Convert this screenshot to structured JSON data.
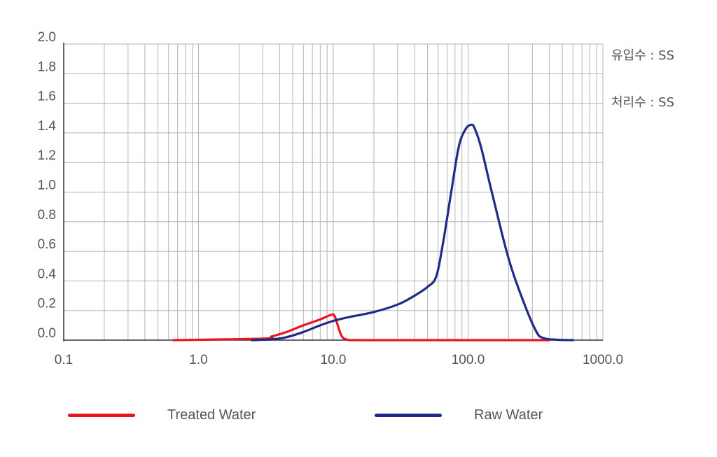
{
  "chart_data": {
    "type": "line",
    "x_scale": "log",
    "xlim": [
      0.1,
      1000
    ],
    "ylim": [
      0,
      2.0
    ],
    "x_ticks": [
      "0.1",
      "1.0",
      "10.0",
      "100.0",
      "1000.0"
    ],
    "y_ticks": [
      "0.0",
      "0.2",
      "0.4",
      "0.6",
      "0.8",
      "1.0",
      "1.2",
      "1.4",
      "1.6",
      "1.8",
      "2.0"
    ],
    "grid": true,
    "annotations": [
      "유입수 : SS",
      "처리수 : SS"
    ],
    "series": [
      {
        "name": "Treated Water",
        "color": "#e8141e",
        "points": [
          [
            0.65,
            0
          ],
          [
            3.0,
            0.01
          ],
          [
            3.5,
            0.025
          ],
          [
            4.5,
            0.055
          ],
          [
            6.0,
            0.1
          ],
          [
            8.0,
            0.14
          ],
          [
            9.6,
            0.17
          ],
          [
            10.2,
            0.165
          ],
          [
            10.8,
            0.1
          ],
          [
            11.5,
            0.03
          ],
          [
            12.5,
            0.005
          ],
          [
            15,
            0
          ],
          [
            40,
            0
          ],
          [
            100,
            0
          ],
          [
            400,
            0
          ]
        ]
      },
      {
        "name": "Raw Water",
        "color": "#1f2a8a",
        "points": [
          [
            2.5,
            0
          ],
          [
            3.5,
            0.005
          ],
          [
            4.5,
            0.02
          ],
          [
            6.0,
            0.055
          ],
          [
            8.0,
            0.1
          ],
          [
            10,
            0.13
          ],
          [
            13,
            0.155
          ],
          [
            20,
            0.19
          ],
          [
            30,
            0.24
          ],
          [
            40,
            0.3
          ],
          [
            50,
            0.36
          ],
          [
            58,
            0.43
          ],
          [
            65,
            0.65
          ],
          [
            75,
            1.0
          ],
          [
            85,
            1.3
          ],
          [
            95,
            1.42
          ],
          [
            105,
            1.455
          ],
          [
            112,
            1.43
          ],
          [
            125,
            1.3
          ],
          [
            150,
            1.0
          ],
          [
            200,
            0.55
          ],
          [
            260,
            0.25
          ],
          [
            320,
            0.06
          ],
          [
            360,
            0.015
          ],
          [
            450,
            0.003
          ],
          [
            600,
            0
          ]
        ]
      }
    ]
  },
  "legend": {
    "treated_label": "Treated Water",
    "raw_label": "Raw Water"
  }
}
